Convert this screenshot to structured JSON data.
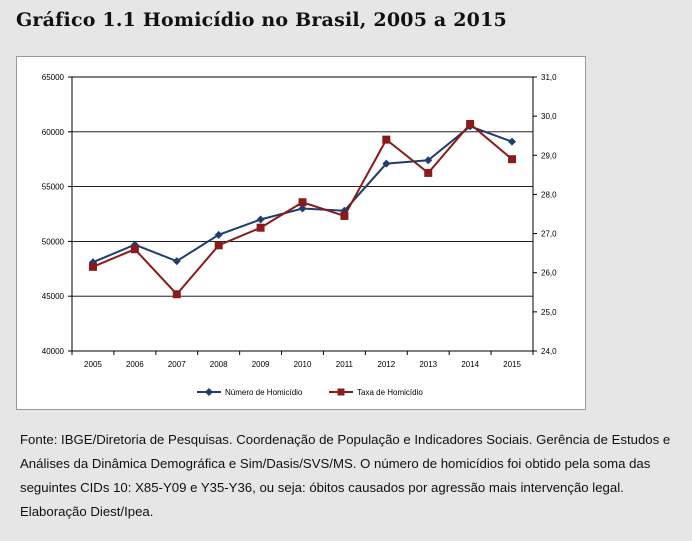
{
  "figure": {
    "title": "Gráfico 1.1 Homicídio no Brasil, 2005 a 2015",
    "source_note": "Fonte: IBGE/Diretoria de Pesquisas. Coordenação de População e Indicadores Sociais. Gerência de Estudos e Análises da Dinâmica Demográfica e Sim/Dasis/SVS/MS. O número de homicídios foi obtido pela soma das seguintes CIDs 10: X85-Y09 e Y35-Y36, ou seja: óbitos causados por agressão mais intervenção legal. Elaboração Diest/Ipea."
  },
  "chart_data": {
    "type": "line",
    "categories": [
      "2005",
      "2006",
      "2007",
      "2008",
      "2009",
      "2010",
      "2011",
      "2012",
      "2013",
      "2014",
      "2015"
    ],
    "series": [
      {
        "name": "Número de Homicídio",
        "axis": "left",
        "color": "#1f3e6e",
        "marker": "diamond",
        "values": [
          48100,
          49700,
          48200,
          50600,
          52000,
          53000,
          52800,
          57100,
          57400,
          60500,
          59100
        ]
      },
      {
        "name": "Taxa de Homicídio",
        "axis": "right",
        "color": "#8b1a1a",
        "marker": "square",
        "values": [
          26.15,
          26.6,
          25.45,
          26.7,
          27.15,
          27.8,
          27.45,
          29.4,
          28.55,
          29.8,
          28.9
        ]
      }
    ],
    "y_left": {
      "min": 40000,
      "max": 65000,
      "ticks": [
        "40000",
        "45000",
        "50000",
        "55000",
        "60000",
        "65000"
      ]
    },
    "y_right": {
      "min": 24.0,
      "max": 31.0,
      "ticks": [
        "24,0",
        "25,0",
        "26,0",
        "27,0",
        "28,0",
        "29,0",
        "30,0",
        "31,0"
      ]
    },
    "grid": "horizontal",
    "legend_position": "bottom",
    "xlabel": "",
    "ylabel": ""
  }
}
